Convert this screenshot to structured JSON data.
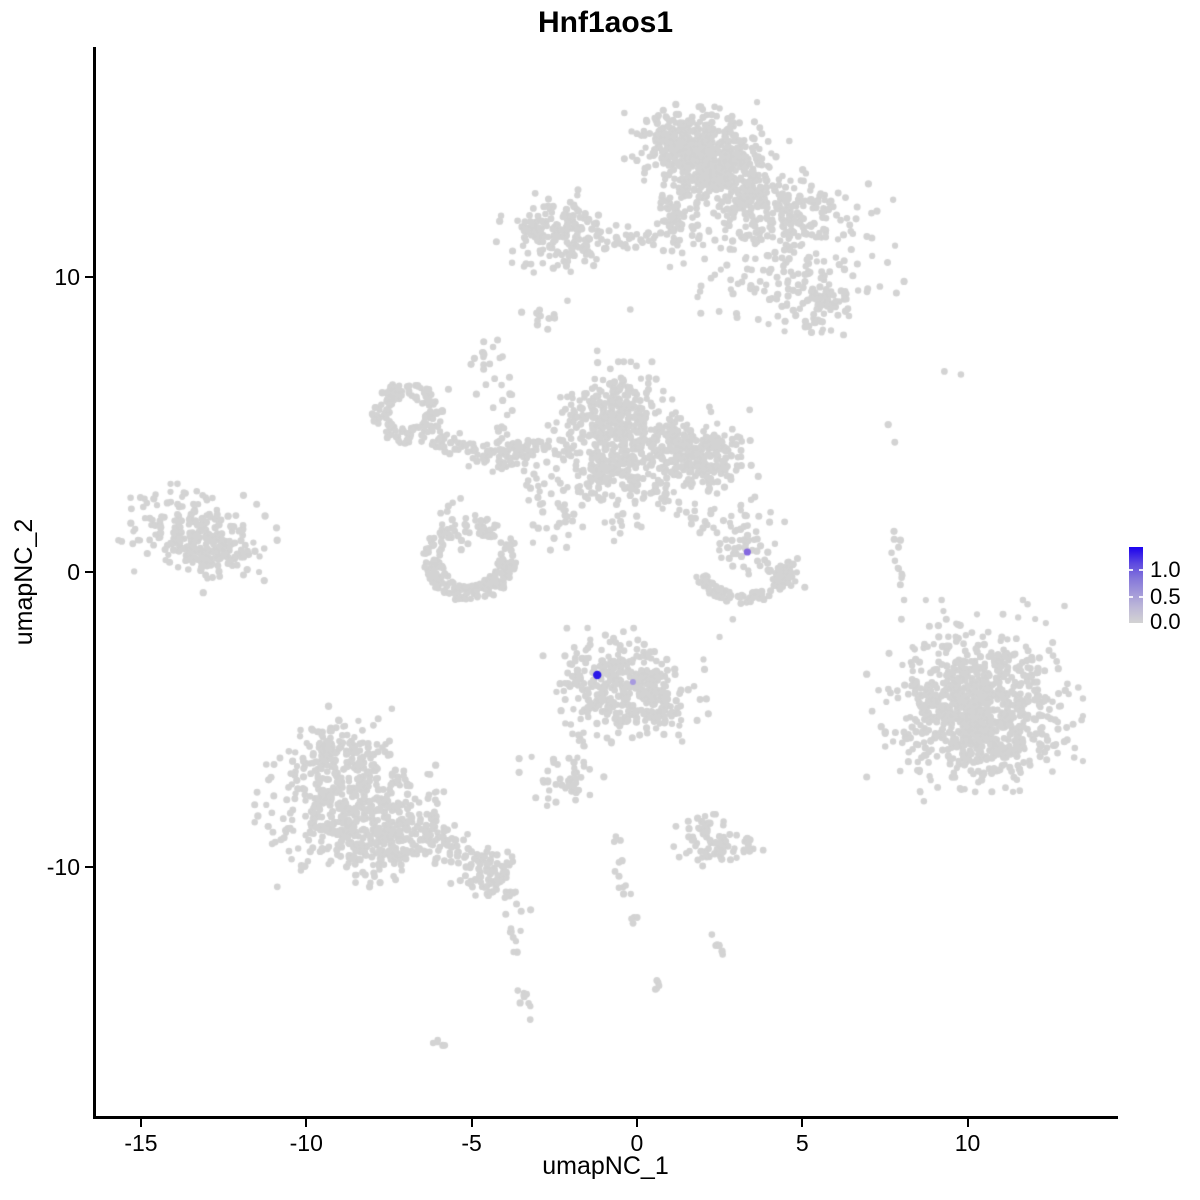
{
  "chart_data": {
    "type": "scatter",
    "title": "Hnf1aos1",
    "xlabel": "umapNC_1",
    "ylabel": "umapNC_2",
    "xlim": [
      -16.36,
      14.46
    ],
    "ylim": [
      -18.44,
      17.8
    ],
    "x_ticks": [
      -15,
      -10,
      -5,
      0,
      5,
      10
    ],
    "y_ticks": [
      10,
      0,
      -10
    ],
    "grid": false,
    "background": "#FFFFFF",
    "axis_color": "#000000",
    "point_color": "#D3D3D3",
    "point_radius_px": 3.4,
    "seed": 1337,
    "legend": {
      "position": "right",
      "labels": [
        "1.0",
        "0.5",
        "0.0"
      ],
      "values": [
        1.0,
        0.5,
        0.0
      ],
      "color_low": "#D3D3D3",
      "color_high": "#0000FF"
    },
    "highlighted_cells": [
      {
        "x": -1.2,
        "y": -3.49,
        "value": 1.3,
        "color": "#2A18E8",
        "radius_px": 4.2
      },
      {
        "x": -0.12,
        "y": -3.73,
        "value": 0.3,
        "color": "#A79ADF",
        "radius_px": 3.0
      },
      {
        "x": 3.34,
        "y": 0.68,
        "value": 0.55,
        "color": "#8468DF",
        "radius_px": 3.6
      }
    ],
    "clusters": [
      {
        "type": "gauss",
        "x": 1.7,
        "y": 14.5,
        "sx": 0.8,
        "sy": 0.55,
        "n": 340
      },
      {
        "type": "gauss",
        "x": 2.4,
        "y": 13.6,
        "sx": 0.85,
        "sy": 0.55,
        "n": 300
      },
      {
        "type": "gauss",
        "x": 1.25,
        "y": 11.9,
        "sx": 0.33,
        "sy": 0.6,
        "n": 70
      },
      {
        "type": "chain",
        "x1": -1.9,
        "y1": 11.2,
        "x2": 0.9,
        "y2": 11.35,
        "j": 0.22,
        "n": 40
      },
      {
        "type": "gauss",
        "x": -2.3,
        "y": 11.4,
        "sx": 0.75,
        "sy": 0.6,
        "n": 150
      },
      {
        "type": "gauss",
        "x": -3.1,
        "y": 11.6,
        "sx": 0.3,
        "sy": 0.3,
        "n": 20
      },
      {
        "type": "gauss",
        "x": 4.5,
        "y": 12.0,
        "sx": 1.25,
        "sy": 0.7,
        "n": 250
      },
      {
        "type": "gauss",
        "x": 3.3,
        "y": 12.9,
        "sx": 0.55,
        "sy": 0.5,
        "n": 60
      },
      {
        "type": "gauss",
        "x": 4.7,
        "y": 9.6,
        "sx": 1.3,
        "sy": 0.75,
        "n": 120
      },
      {
        "type": "gauss",
        "x": 5.6,
        "y": 9.2,
        "sx": 0.4,
        "sy": 0.45,
        "n": 45
      },
      {
        "type": "gauss",
        "x": -4.5,
        "y": 7.2,
        "sx": 0.3,
        "sy": 0.45,
        "n": 18
      },
      {
        "type": "chain",
        "x1": -4.1,
        "y1": 4.9,
        "x2": -3.75,
        "y2": 6.5,
        "j": 0.15,
        "n": 12
      },
      {
        "type": "gauss",
        "x": -2.8,
        "y": 8.7,
        "sx": 0.3,
        "sy": 0.18,
        "n": 12
      },
      {
        "type": "ring",
        "x": -6.95,
        "y": 5.4,
        "r": 0.8,
        "w": 0.55,
        "n": 140
      },
      {
        "type": "chain",
        "x1": -6.0,
        "y1": 4.55,
        "x2": -4.4,
        "y2": 3.95,
        "j": 0.22,
        "n": 45
      },
      {
        "type": "gauss",
        "x": -4.0,
        "y": 4.05,
        "sx": 0.45,
        "sy": 0.3,
        "n": 50
      },
      {
        "type": "chain",
        "x1": -3.9,
        "y1": 4.05,
        "x2": -2.2,
        "y2": 4.25,
        "j": 0.18,
        "n": 35
      },
      {
        "type": "gauss",
        "x": -0.7,
        "y": 5.05,
        "sx": 0.8,
        "sy": 0.8,
        "n": 400
      },
      {
        "type": "gauss",
        "x": 1.85,
        "y": 4.05,
        "sx": 0.7,
        "sy": 0.6,
        "n": 280
      },
      {
        "type": "gauss",
        "x": -0.8,
        "y": 3.3,
        "sx": 0.95,
        "sy": 0.5,
        "n": 130
      },
      {
        "type": "chain",
        "x1": -3.3,
        "y1": 3.4,
        "x2": -1.9,
        "y2": 1.7,
        "j": 0.2,
        "n": 20
      },
      {
        "type": "gauss",
        "x": -2.6,
        "y": 1.7,
        "sx": 0.4,
        "sy": 0.55,
        "n": 16
      },
      {
        "type": "ring",
        "x": -5.05,
        "y": 0.45,
        "r": 1.15,
        "w": 0.6,
        "n": 150
      },
      {
        "type": "arc",
        "x": -5.05,
        "y": 0.45,
        "r": 1.15,
        "a1": 180,
        "a2": 360,
        "w": 0.5,
        "n": 80
      },
      {
        "type": "gauss",
        "x": -5.5,
        "y": 1.55,
        "sx": 0.35,
        "sy": 0.45,
        "n": 18
      },
      {
        "type": "gauss",
        "x": -0.5,
        "y": 1.8,
        "sx": 0.4,
        "sy": 0.45,
        "n": 16
      },
      {
        "type": "chain",
        "x1": 0.2,
        "y1": 2.9,
        "x2": 2.2,
        "y2": 1.6,
        "j": 0.28,
        "n": 25
      },
      {
        "type": "gauss",
        "x": -13.6,
        "y": 1.3,
        "sx": 0.8,
        "sy": 0.65,
        "n": 180
      },
      {
        "type": "gauss",
        "x": -12.7,
        "y": 0.6,
        "sx": 0.7,
        "sy": 0.5,
        "n": 100
      },
      {
        "type": "gauss",
        "x": 3.2,
        "y": 0.95,
        "sx": 0.55,
        "sy": 0.5,
        "n": 45
      },
      {
        "type": "gauss",
        "x": 3.05,
        "y": 1.9,
        "sx": 0.45,
        "sy": 0.4,
        "n": 14
      },
      {
        "type": "arc",
        "x": 3.2,
        "y": 0.5,
        "r": 1.4,
        "a1": 205,
        "a2": 355,
        "w": 0.35,
        "n": 95
      },
      {
        "type": "gauss",
        "x": 4.35,
        "y": -0.15,
        "sx": 0.28,
        "sy": 0.3,
        "n": 25
      },
      {
        "type": "gauss",
        "x": -0.5,
        "y": -3.85,
        "sx": 1.0,
        "sy": 0.75,
        "n": 330
      },
      {
        "type": "gauss",
        "x": 0.6,
        "y": -4.6,
        "sx": 0.6,
        "sy": 0.5,
        "n": 60
      },
      {
        "type": "chain",
        "x1": -1.55,
        "y1": -5.4,
        "x2": -1.95,
        "y2": -7.1,
        "j": 0.13,
        "n": 14
      },
      {
        "type": "gauss",
        "x": -2.3,
        "y": -7.05,
        "sx": 0.5,
        "sy": 0.42,
        "n": 40
      },
      {
        "type": "gauss",
        "x": -9.0,
        "y": -6.2,
        "sx": 0.85,
        "sy": 0.7,
        "n": 160
      },
      {
        "type": "gauss",
        "x": -8.7,
        "y": -8.2,
        "sx": 1.1,
        "sy": 0.95,
        "n": 400
      },
      {
        "type": "gauss",
        "x": -7.5,
        "y": -9.3,
        "sx": 0.7,
        "sy": 0.55,
        "n": 120
      },
      {
        "type": "chain",
        "x1": -6.9,
        "y1": -8.4,
        "x2": -4.7,
        "y2": -10.1,
        "j": 0.3,
        "n": 85
      },
      {
        "type": "gauss",
        "x": -4.25,
        "y": -10.3,
        "sx": 0.42,
        "sy": 0.45,
        "n": 70
      },
      {
        "type": "chain",
        "x1": -3.95,
        "y1": -11.1,
        "x2": -3.55,
        "y2": -12.9,
        "j": 0.12,
        "n": 9
      },
      {
        "type": "chain",
        "x1": -3.55,
        "y1": -13.9,
        "x2": -3.2,
        "y2": -15.2,
        "j": 0.1,
        "n": 9
      },
      {
        "type": "chain",
        "x1": -6.1,
        "y1": -15.85,
        "x2": -5.85,
        "y2": -16.1,
        "j": 0.05,
        "n": 5
      },
      {
        "type": "gauss",
        "x": 10.2,
        "y": -4.2,
        "sx": 1.25,
        "sy": 1.25,
        "n": 520
      },
      {
        "type": "gauss",
        "x": 10.5,
        "y": -5.3,
        "sx": 1.15,
        "sy": 0.95,
        "n": 380
      },
      {
        "type": "chain",
        "x1": 7.82,
        "y1": 1.35,
        "x2": 7.98,
        "y2": -0.7,
        "j": 0.1,
        "n": 12
      },
      {
        "type": "gauss",
        "x": 2.45,
        "y": -9.25,
        "sx": 0.68,
        "sy": 0.4,
        "n": 85
      },
      {
        "type": "chain",
        "x1": -0.72,
        "y1": -9.0,
        "x2": -0.15,
        "y2": -11.95,
        "j": 0.14,
        "n": 16
      },
      {
        "type": "chain",
        "x1": 2.2,
        "y1": -12.3,
        "x2": 2.62,
        "y2": -13.0,
        "j": 0.08,
        "n": 7
      },
      {
        "type": "gauss",
        "x": 0.62,
        "y": -13.9,
        "sx": 0.14,
        "sy": 0.12,
        "n": 5
      }
    ],
    "singles": [
      [
        -11.9,
        2.6
      ],
      [
        -11.5,
        2.3
      ],
      [
        -10.9,
        1.5
      ],
      [
        -11.6,
        1.0
      ],
      [
        -11.9,
        -0.1
      ],
      [
        -5.7,
        6.2
      ],
      [
        -1.2,
        7.5
      ],
      [
        -2.1,
        9.2
      ],
      [
        -0.2,
        8.9
      ],
      [
        9.3,
        6.8
      ],
      [
        9.8,
        6.7
      ],
      [
        7.6,
        5.0
      ],
      [
        7.8,
        4.4
      ],
      [
        8.0,
        -1.6
      ],
      [
        2.9,
        -1.6
      ],
      [
        2.5,
        -2.2
      ],
      [
        -3.5,
        -11.5
      ],
      [
        -3.73,
        -12.88
      ]
    ]
  }
}
